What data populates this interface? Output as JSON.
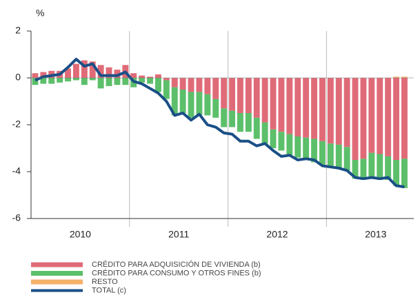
{
  "chart_data": {
    "type": "stacked_bar_line",
    "y_label": "%",
    "categories": [
      null,
      null,
      null,
      null,
      null,
      null,
      "2010",
      null,
      null,
      null,
      null,
      null,
      null,
      null,
      null,
      null,
      null,
      null,
      "2011",
      null,
      null,
      null,
      null,
      null,
      null,
      null,
      null,
      null,
      null,
      null,
      "2012",
      null,
      null,
      null,
      null,
      null,
      null,
      null,
      null,
      null,
      null,
      null,
      "2013",
      null,
      null,
      null
    ],
    "series": [
      {
        "name": "CRÉDITO PARA ADQUISICIÓN DE VIVIENDA (b)",
        "color": "#e06b78",
        "kind": "bar",
        "values": [
          0.2,
          0.25,
          0.3,
          0.3,
          0.4,
          0.6,
          0.75,
          0.7,
          0.55,
          0.45,
          0.35,
          0.55,
          0.2,
          0.1,
          0.05,
          0.15,
          -0.1,
          -0.4,
          -0.5,
          -0.6,
          -0.6,
          -0.7,
          -0.9,
          -1.3,
          -1.4,
          -1.5,
          -1.5,
          -1.7,
          -1.9,
          -2.2,
          -2.3,
          -2.4,
          -2.5,
          -2.55,
          -2.6,
          -2.7,
          -2.8,
          -2.85,
          -2.95,
          -3.5,
          -3.45,
          -3.2,
          -3.25,
          -3.35,
          -3.5,
          -3.45
        ]
      },
      {
        "name": "CRÉDITO PARA CONSUMO Y OTROS FINES (b)",
        "color": "#5cbf6a",
        "kind": "bar",
        "values": [
          -0.3,
          -0.25,
          -0.25,
          -0.2,
          -0.15,
          -0.1,
          -0.3,
          -0.1,
          -0.45,
          -0.35,
          -0.3,
          -0.3,
          -0.4,
          -0.2,
          -0.25,
          -0.6,
          -0.8,
          -1.2,
          -1.0,
          -1.1,
          -1.0,
          -0.9,
          -0.8,
          -0.8,
          -0.7,
          -0.8,
          -0.8,
          -0.9,
          -0.9,
          -0.8,
          -0.8,
          -0.9,
          -0.9,
          -0.9,
          -1.0,
          -1.0,
          -1.0,
          -1.0,
          -1.0,
          -0.8,
          -0.9,
          -1.1,
          -1.1,
          -1.0,
          -1.1,
          -1.25
        ]
      },
      {
        "name": "RESTO",
        "color": "#f5b26b",
        "kind": "bar",
        "values": [
          0,
          0,
          0,
          0,
          0,
          0,
          0,
          0,
          0,
          0,
          0,
          0,
          0,
          0,
          0,
          0,
          0,
          0,
          0,
          0,
          0,
          0,
          0,
          0,
          0,
          0,
          0,
          0,
          0,
          0,
          0,
          0,
          0,
          0,
          0,
          0,
          0,
          0,
          0,
          0,
          0,
          0,
          0,
          0,
          0.05,
          0.05
        ]
      },
      {
        "name": "TOTAL (c)",
        "color": "#1a4f86",
        "kind": "line",
        "values": [
          -0.1,
          0.05,
          0.1,
          0.15,
          0.45,
          0.8,
          0.5,
          0.6,
          0.1,
          0.1,
          0.1,
          0.25,
          -0.15,
          -0.25,
          -0.45,
          -0.65,
          -1.0,
          -1.6,
          -1.5,
          -1.8,
          -1.55,
          -2.0,
          -2.1,
          -2.35,
          -2.4,
          -2.7,
          -2.7,
          -2.9,
          -2.8,
          -3.1,
          -3.35,
          -3.3,
          -3.5,
          -3.45,
          -3.5,
          -3.75,
          -3.8,
          -3.85,
          -3.95,
          -4.25,
          -4.3,
          -4.25,
          -4.3,
          -4.25,
          -4.6,
          -4.65
        ]
      }
    ],
    "ylim": [
      -6,
      2
    ],
    "yticks": [
      -6,
      -4,
      -2,
      0,
      2
    ]
  }
}
